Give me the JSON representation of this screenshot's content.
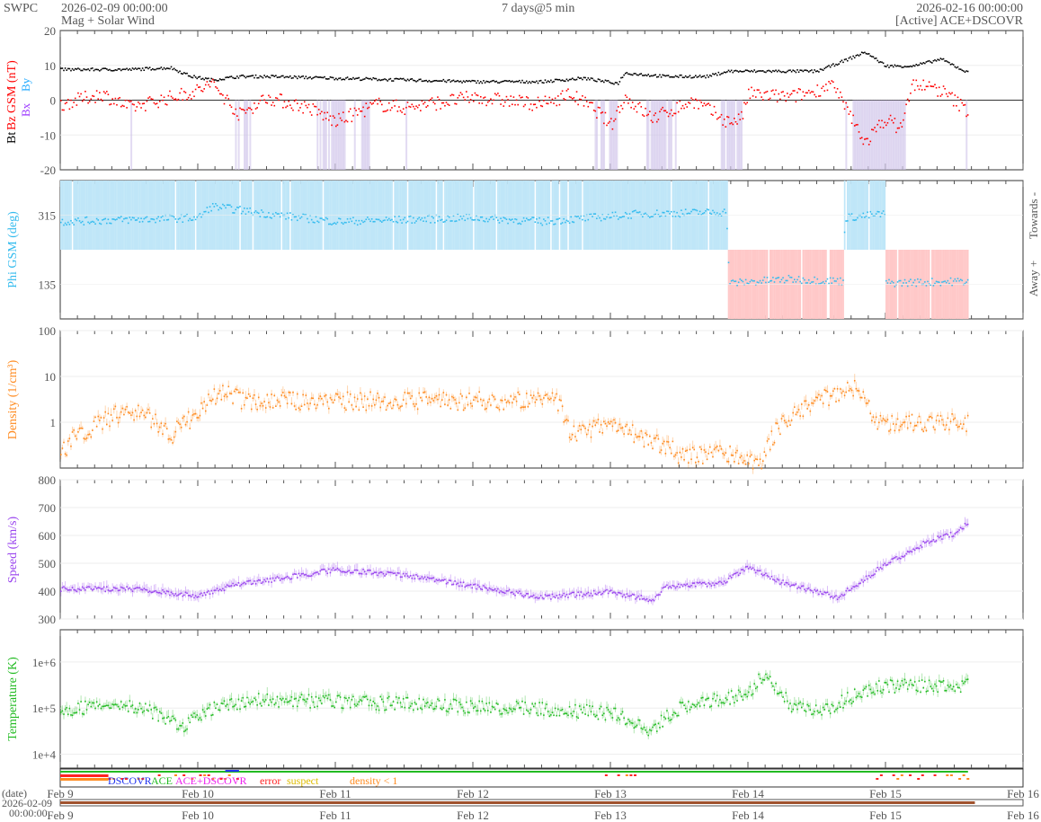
{
  "header": {
    "org": "SWPC",
    "start": "2026-02-09 00:00:00",
    "product": "Mag + Solar Wind",
    "span": "7 days@5 min",
    "end": "2026-02-16 00:00:00",
    "source": "[Active] ACE+DSCOVR"
  },
  "colors": {
    "bt": "#000000",
    "bz": "#ff0000",
    "bx": "#9933ff",
    "by": "#22aaff",
    "phi": "#33bbee",
    "toward": "#bfe6f8",
    "away": "#ffc8c8",
    "density": "#ff8a1e",
    "speed": "#9944ee",
    "temp": "#22bb22"
  },
  "chart_data": [
    {
      "type": "scatter",
      "name": "mag",
      "ylabel_parts": [
        "Bt",
        "Bz GSM (nT)",
        "Bx",
        "By"
      ],
      "ylim": [
        -20,
        20
      ],
      "yticks": [
        "20",
        "10",
        "0",
        "-10",
        "-20"
      ],
      "x_unit": "days since 2026-02-09",
      "series": [
        {
          "name": "Bt",
          "points": [
            [
              0,
              9
            ],
            [
              0.5,
              9
            ],
            [
              0.8,
              9.5
            ],
            [
              0.95,
              7
            ],
            [
              1.1,
              6
            ],
            [
              1.3,
              7
            ],
            [
              1.5,
              7
            ],
            [
              2,
              6.5
            ],
            [
              2.5,
              6
            ],
            [
              3,
              5.5
            ],
            [
              3.5,
              5.5
            ],
            [
              3.8,
              6.5
            ],
            [
              4.05,
              5
            ],
            [
              4.1,
              8
            ],
            [
              4.4,
              7
            ],
            [
              4.7,
              7
            ],
            [
              4.85,
              8.5
            ],
            [
              5.5,
              8.5
            ],
            [
              5.6,
              10
            ],
            [
              5.85,
              14
            ],
            [
              6,
              10
            ],
            [
              6.2,
              10
            ],
            [
              6.4,
              12
            ],
            [
              6.6,
              8
            ]
          ]
        },
        {
          "name": "Bz",
          "points": [
            [
              0,
              -1
            ],
            [
              0.3,
              2
            ],
            [
              0.5,
              -2
            ],
            [
              0.8,
              1
            ],
            [
              1.0,
              3
            ],
            [
              1.1,
              5
            ],
            [
              1.3,
              -4
            ],
            [
              1.5,
              1
            ],
            [
              1.8,
              -2
            ],
            [
              2.0,
              -6
            ],
            [
              2.3,
              -1
            ],
            [
              2.5,
              -2
            ],
            [
              3,
              1
            ],
            [
              3.5,
              -1
            ],
            [
              3.7,
              2
            ],
            [
              3.9,
              -3
            ],
            [
              4.0,
              -7
            ],
            [
              4.1,
              1
            ],
            [
              4.3,
              -5
            ],
            [
              4.6,
              0
            ],
            [
              4.85,
              -6
            ],
            [
              4.95,
              -5
            ],
            [
              5.0,
              2
            ],
            [
              5.3,
              1
            ],
            [
              5.5,
              3
            ],
            [
              5.6,
              5
            ],
            [
              5.75,
              -5
            ],
            [
              5.85,
              -12
            ],
            [
              6.0,
              -5
            ],
            [
              6.1,
              -8
            ],
            [
              6.2,
              5
            ],
            [
              6.4,
              3
            ],
            [
              6.6,
              -3
            ]
          ]
        }
      ]
    },
    {
      "type": "scatter",
      "name": "phi",
      "ylabel": "Phi GSM (deg)",
      "ylim": [
        45,
        405
      ],
      "yticks": [
        "315",
        "135"
      ],
      "right_labels": [
        "Towards -",
        "Away +"
      ],
      "series": [
        {
          "name": "Phi",
          "points": [
            [
              0,
              300
            ],
            [
              1,
              310
            ],
            [
              1.1,
              340
            ],
            [
              1.5,
              320
            ],
            [
              2,
              300
            ],
            [
              3,
              310
            ],
            [
              3.5,
              300
            ],
            [
              4.2,
              320
            ],
            [
              4.84,
              325
            ],
            [
              4.86,
              140
            ],
            [
              5.3,
              150
            ],
            [
              5.69,
              145
            ],
            [
              5.7,
              310
            ],
            [
              5.99,
              320
            ],
            [
              6.0,
              140
            ],
            [
              6.6,
              145
            ]
          ]
        }
      ]
    },
    {
      "type": "scatter",
      "name": "density",
      "ylabel": "Density (1/cm³)",
      "scale": "log",
      "ylim": [
        0.1,
        100
      ],
      "yticks": [
        "100",
        "10",
        "1"
      ],
      "series": [
        {
          "name": "Density",
          "points": [
            [
              0,
              0.2
            ],
            [
              0.3,
              1
            ],
            [
              0.5,
              2
            ],
            [
              0.8,
              0.5
            ],
            [
              1.0,
              1.5
            ],
            [
              1.2,
              5
            ],
            [
              1.3,
              3
            ],
            [
              2,
              3
            ],
            [
              3,
              3
            ],
            [
              3.6,
              3
            ],
            [
              3.7,
              0.5
            ],
            [
              4.0,
              1
            ],
            [
              4.2,
              0.5
            ],
            [
              4.5,
              0.2
            ],
            [
              4.9,
              0.2
            ],
            [
              5.1,
              0.1
            ],
            [
              5.3,
              1.2
            ],
            [
              5.6,
              4
            ],
            [
              5.8,
              6
            ],
            [
              5.9,
              1
            ],
            [
              6.2,
              1
            ],
            [
              6.6,
              1
            ]
          ]
        }
      ]
    },
    {
      "type": "scatter",
      "name": "speed",
      "ylabel": "Speed (km/s)",
      "ylim": [
        300,
        800
      ],
      "yticks": [
        "800",
        "700",
        "600",
        "500",
        "400",
        "300"
      ],
      "series": [
        {
          "name": "Speed",
          "points": [
            [
              0,
              410
            ],
            [
              0.5,
              410
            ],
            [
              1,
              385
            ],
            [
              1.3,
              430
            ],
            [
              1.5,
              440
            ],
            [
              2,
              480
            ],
            [
              2.5,
              460
            ],
            [
              3,
              420
            ],
            [
              3.5,
              380
            ],
            [
              4,
              400
            ],
            [
              4.3,
              370
            ],
            [
              4.4,
              420
            ],
            [
              4.8,
              430
            ],
            [
              5,
              490
            ],
            [
              5.2,
              440
            ],
            [
              5.5,
              400
            ],
            [
              5.65,
              380
            ],
            [
              6,
              500
            ],
            [
              6.3,
              580
            ],
            [
              6.5,
              610
            ],
            [
              6.6,
              650
            ]
          ]
        }
      ]
    },
    {
      "type": "scatter",
      "name": "temp",
      "ylabel": "Temperature (K)",
      "scale": "log",
      "ylim": [
        5000,
        5000000
      ],
      "yticks": [
        "1e+6",
        "1e+5",
        "1e+4"
      ],
      "series": [
        {
          "name": "Temperature",
          "points": [
            [
              0,
              100000
            ],
            [
              0.5,
              112000
            ],
            [
              0.9,
              40000
            ],
            [
              1.2,
              126000
            ],
            [
              1.5,
              158000
            ],
            [
              2,
              141000
            ],
            [
              3,
              112000
            ],
            [
              3.5,
              100000
            ],
            [
              4,
              79000
            ],
            [
              4.3,
              32000
            ],
            [
              4.5,
              100000
            ],
            [
              5,
              200000
            ],
            [
              5.1,
              500000
            ],
            [
              5.3,
              100000
            ],
            [
              5.6,
              100000
            ],
            [
              6,
              316000
            ],
            [
              6.5,
              282000
            ],
            [
              6.6,
              316000
            ]
          ]
        }
      ]
    }
  ],
  "xaxis": {
    "ticks": [
      "Feb 9",
      "Feb 10",
      "Feb 11",
      "Feb 12",
      "Feb 13",
      "Feb 14",
      "Feb 15",
      "Feb 16"
    ]
  },
  "legend": {
    "dscovr": "DSCOVR",
    "ace": "ACE",
    "both": "ACE+DSCOVR",
    "error": "error",
    "suspect": "suspect",
    "density": "density < 1"
  },
  "datebar": {
    "label": "(date)",
    "start_date": "2026-02-09",
    "start_time": "00:00:00"
  }
}
